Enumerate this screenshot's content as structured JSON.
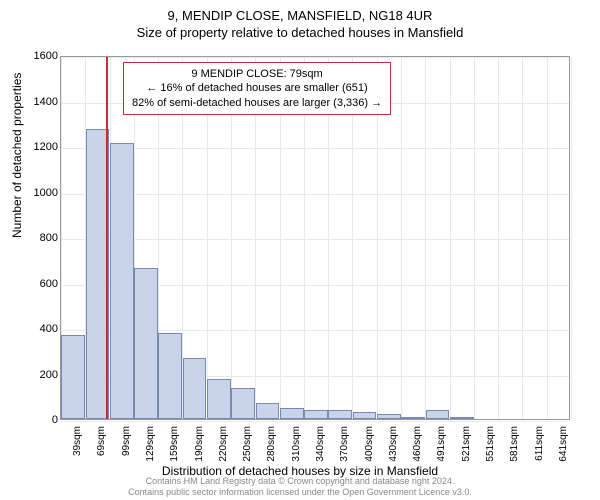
{
  "titles": {
    "line1": "9, MENDIP CLOSE, MANSFIELD, NG18 4UR",
    "line2": "Size of property relative to detached houses in Mansfield"
  },
  "axes": {
    "ylabel": "Number of detached properties",
    "xlabel": "Distribution of detached houses by size in Mansfield",
    "ylim": [
      0,
      1600
    ],
    "ytick_step": 200,
    "x_categories": [
      "39sqm",
      "69sqm",
      "99sqm",
      "129sqm",
      "159sqm",
      "190sqm",
      "220sqm",
      "250sqm",
      "280sqm",
      "310sqm",
      "340sqm",
      "370sqm",
      "400sqm",
      "430sqm",
      "460sqm",
      "491sqm",
      "521sqm",
      "551sqm",
      "581sqm",
      "611sqm",
      "641sqm"
    ]
  },
  "chart": {
    "type": "histogram",
    "bar_color": "#c9d4ea",
    "bar_border": "#7a8aae",
    "grid_color": "#e8e8f0",
    "background": "#ffffff",
    "axis_color": "#999999",
    "bar_width_ratio": 0.98,
    "values": [
      370,
      1275,
      1215,
      665,
      380,
      270,
      175,
      135,
      70,
      50,
      40,
      40,
      30,
      20,
      10,
      40,
      10,
      0,
      0,
      0,
      0
    ]
  },
  "reference": {
    "position_index_approx": 1.35,
    "color": "#c03030",
    "box": {
      "line1": "9 MENDIP CLOSE: 79sqm",
      "line2": "← 16% of detached houses are smaller (651)",
      "line3": "82% of semi-detached houses are larger (3,336) →"
    }
  },
  "footer": {
    "line1": "Contains HM Land Registry data © Crown copyright and database right 2024.",
    "line2": "Contains public sector information licensed under the Open Government Licence v3.0."
  }
}
